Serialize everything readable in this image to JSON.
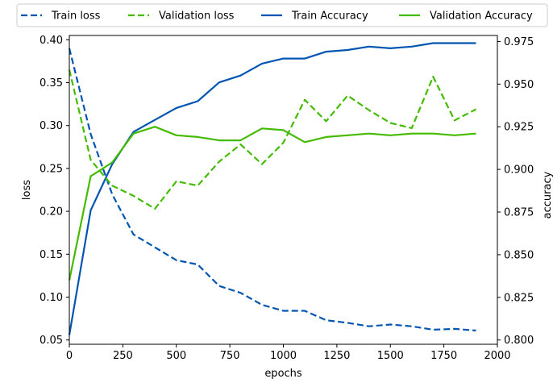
{
  "chart_data": {
    "type": "line",
    "xlabel": "epochs",
    "ylabel_left": "loss",
    "ylabel_right": "accuracy",
    "x": [
      0,
      100,
      200,
      300,
      400,
      500,
      600,
      700,
      800,
      900,
      1000,
      1100,
      1200,
      1300,
      1400,
      1500,
      1600,
      1700,
      1800,
      1900
    ],
    "xlim": [
      0,
      2000
    ],
    "xticks": [
      0,
      250,
      500,
      750,
      1000,
      1250,
      1500,
      1750,
      2000
    ],
    "ylim_left": [
      0.045,
      0.405
    ],
    "yticks_left": [
      "0.05",
      "0.10",
      "0.15",
      "0.20",
      "0.25",
      "0.30",
      "0.35",
      "0.40"
    ],
    "ylim_right": [
      0.7975,
      0.9785
    ],
    "yticks_right": [
      "0.800",
      "0.825",
      "0.850",
      "0.875",
      "0.900",
      "0.925",
      "0.950",
      "0.975"
    ],
    "legend_position": "top, outside plot",
    "series": [
      {
        "name": "Train loss",
        "axis": "left",
        "style": "dashed",
        "color": "#0055b3",
        "values": [
          0.39,
          0.29,
          0.22,
          0.173,
          0.158,
          0.143,
          0.138,
          0.113,
          0.105,
          0.091,
          0.084,
          0.084,
          0.073,
          0.07,
          0.066,
          0.068,
          0.066,
          0.062,
          0.063,
          0.061
        ]
      },
      {
        "name": "Validation loss",
        "axis": "left",
        "style": "dashed",
        "color": "#44bb00",
        "values": [
          0.365,
          0.26,
          0.23,
          0.218,
          0.203,
          0.235,
          0.23,
          0.258,
          0.278,
          0.255,
          0.28,
          0.33,
          0.305,
          0.335,
          0.318,
          0.303,
          0.297,
          0.357,
          0.306,
          0.319
        ]
      },
      {
        "name": "Train Accuracy",
        "axis": "right",
        "style": "solid",
        "color": "#0055b3",
        "values": [
          0.803,
          0.876,
          0.903,
          0.922,
          0.929,
          0.936,
          0.94,
          0.951,
          0.955,
          0.962,
          0.965,
          0.965,
          0.969,
          0.97,
          0.972,
          0.971,
          0.972,
          0.974,
          0.974,
          0.974
        ]
      },
      {
        "name": "Validation Accuracy",
        "axis": "right",
        "style": "solid",
        "color": "#44bb00",
        "values": [
          0.835,
          0.896,
          0.904,
          0.921,
          0.925,
          0.92,
          0.919,
          0.917,
          0.917,
          0.924,
          0.923,
          0.916,
          0.919,
          0.92,
          0.921,
          0.92,
          0.921,
          0.921,
          0.92,
          0.921
        ]
      }
    ]
  }
}
